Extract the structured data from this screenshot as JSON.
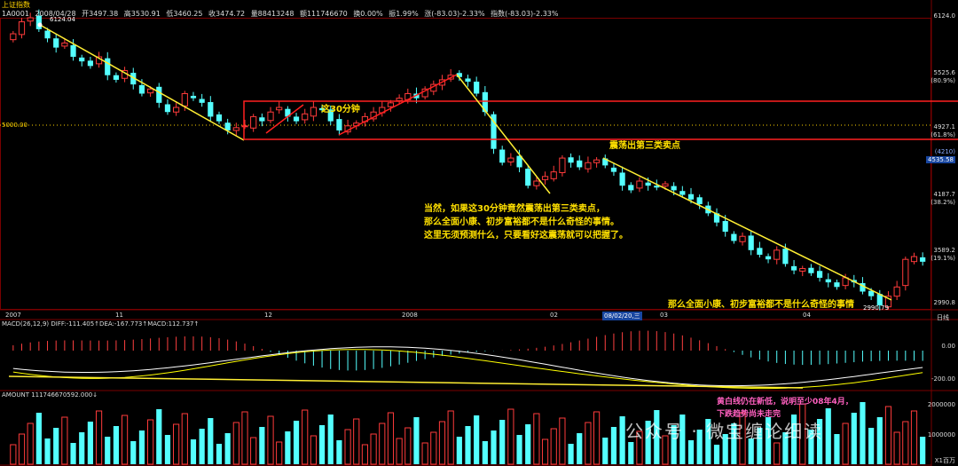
{
  "header": {
    "title": "上证指数",
    "code": "1A0001",
    "date": "2008/04/28",
    "open": "开3497.38",
    "high": "高3530.91",
    "low": "低3460.25",
    "close": "收3474.72",
    "vol": "量88413248",
    "amount": "额111746670",
    "turnover": "换0.00%",
    "amp": "振1.99%",
    "chg": "涨(-83.03)-2.33%",
    "idx": "指数(-83.03)-2.33%"
  },
  "price_axis": {
    "labels": [
      "6124.0",
      "5525.6",
      "(80.9%)",
      "4927.1",
      "(61.8%)",
      "(4210)",
      "4535.58",
      "4187.7",
      "(38.2%)",
      "3589.2",
      "(19.1%)",
      "2990.8"
    ]
  },
  "x_axis": {
    "labels": [
      "2007",
      "11",
      "12",
      "2008",
      "02",
      "08/02/20,三",
      "03",
      "04",
      "日线"
    ]
  },
  "price_marks": {
    "peak_label": "6124.04",
    "low_label": "2990.79",
    "level_5000": "5000.00"
  },
  "annotations": {
    "a30min": "这30分钟",
    "third_sell": "震荡出第三类卖点",
    "para1": "当然，如果这30分钟竟然震荡出第三类卖点，",
    "para2": "那么全面小康、初步富裕都不是什么奇怪的事情。",
    "para3": "这里无须预测什么，只要看好这震荡就可以把握了。",
    "bottom": "那么全面小康、初步富裕都不是什么奇怪的事情",
    "macd_note1": "黄白线仍在新低，说明至少08年4月，",
    "macd_note2": "下跌趋势尚未走完"
  },
  "macd": {
    "header": "MACD(26,12,9)  DIFF:-111.405↑DEA:-167.773↑MACD:112.737↑",
    "labels": [
      "0.00",
      "-200.00"
    ]
  },
  "amount_panel": {
    "header": "AMOUNT  111746670592.000↓",
    "labels": [
      "2000000",
      "1000000",
      "X1百万"
    ]
  },
  "watermark": "公众号 · 微宝缠论细读",
  "colors": {
    "up": "#ff3b3b",
    "down": "#54ffff",
    "trend_yellow": "#ffee33",
    "box_red": "#ff2020",
    "dif": "#ffffff",
    "dea": "#ffff00"
  },
  "chart_data": {
    "type": "candlestick",
    "ylim": [
      2990.8,
      6124.0
    ],
    "closes": [
      5950,
      6080,
      6124,
      6000,
      5900,
      5800,
      5850,
      5700,
      5650,
      5600,
      5700,
      5500,
      5450,
      5550,
      5400,
      5300,
      5350,
      5200,
      5100,
      5150,
      5300,
      5250,
      5200,
      5050,
      5000,
      4900,
      4930,
      4950,
      5050,
      5000,
      5100,
      5150,
      5050,
      5000,
      5080,
      5150,
      5120,
      5000,
      4900,
      4950,
      4980,
      5050,
      5100,
      5150,
      5200,
      5250,
      5300,
      5250,
      5350,
      5400,
      5450,
      5500,
      5480,
      5430,
      5300,
      5100,
      4700,
      4550,
      4600,
      4500,
      4300,
      4350,
      4400,
      4450,
      4600,
      4550,
      4500,
      4550,
      4580,
      4520,
      4450,
      4300,
      4250,
      4350,
      4300,
      4280,
      4320,
      4250,
      4200,
      4150,
      4100,
      4000,
      3900,
      3800,
      3700,
      3750,
      3600,
      3550,
      3500,
      3600,
      3450,
      3380,
      3400,
      3350,
      3300,
      3250,
      3200,
      3300,
      3250,
      3150,
      3100,
      3000,
      3100,
      3200,
      3500,
      3530,
      3474
    ]
  }
}
